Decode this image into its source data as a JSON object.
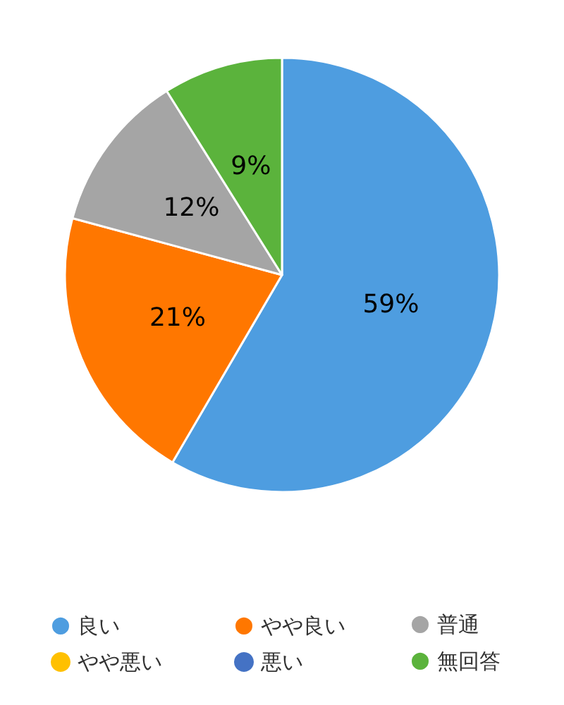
{
  "chart_data": {
    "type": "pie",
    "categories": [
      "良い",
      "やや良い",
      "普通",
      "やや悪い",
      "悪い",
      "無回答"
    ],
    "values": [
      59,
      21,
      12,
      0,
      0,
      9
    ],
    "colors": [
      "#4e9de0",
      "#ff7700",
      "#a5a5a5",
      "#ffc000",
      "#4472c4",
      "#5bb33c"
    ],
    "value_labels": [
      "59%",
      "21%",
      "12%",
      null,
      null,
      "9%"
    ],
    "legend": "bottom"
  }
}
